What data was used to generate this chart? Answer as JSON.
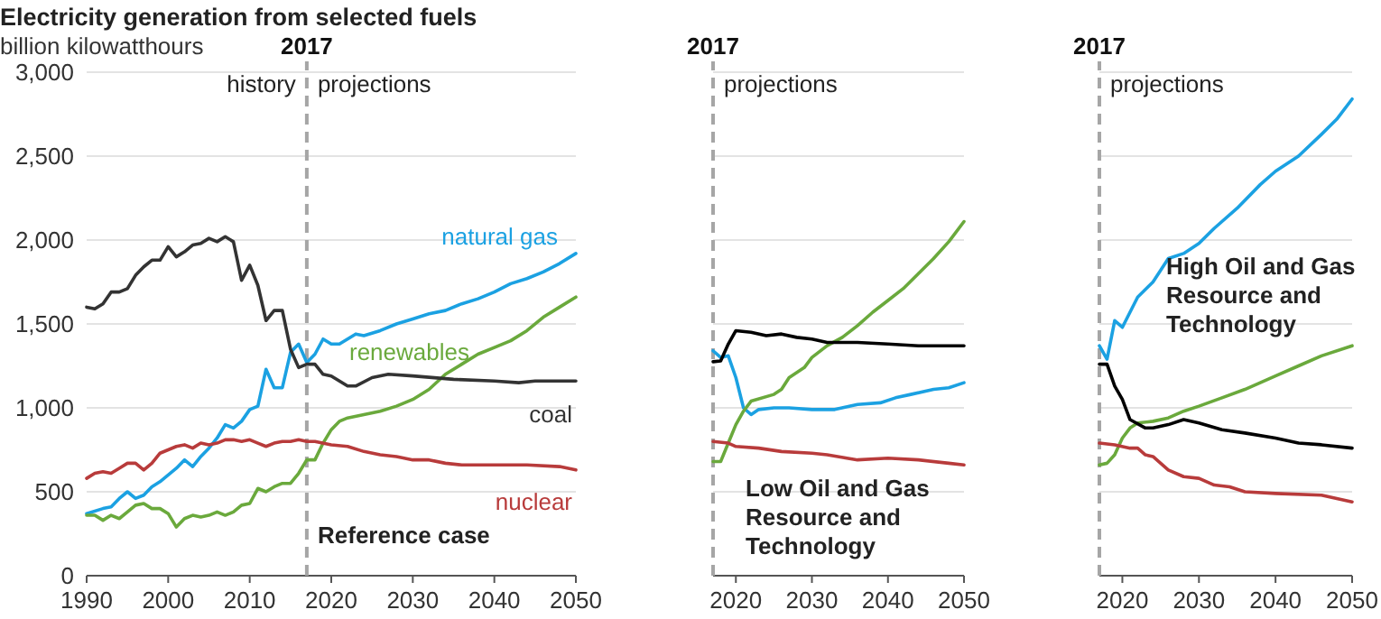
{
  "chart_data": [
    {
      "type": "line",
      "title": "Electricity generation from selected fuels",
      "ylabel": "billion kilowatthours",
      "xlim": [
        1990,
        2050
      ],
      "xticks": [
        1990,
        2000,
        2010,
        2020,
        2030,
        2040,
        2050
      ],
      "ylim": [
        0,
        3000
      ],
      "yticks": [
        {
          "value": 0,
          "label": "0"
        },
        {
          "value": 500,
          "label": "500"
        },
        {
          "value": 1000,
          "label": "1,000"
        },
        {
          "value": 1500,
          "label": "1,500"
        },
        {
          "value": 2000,
          "label": "2,000"
        },
        {
          "value": 2500,
          "label": "2,500"
        },
        {
          "value": 3000,
          "label": "3,000"
        }
      ],
      "grid": "y",
      "ref_lines": [
        {
          "axis": "x",
          "value": 2017,
          "label": "2017",
          "color": "#a6a6a6",
          "line_style": "dashed"
        }
      ],
      "annotations": [
        "history",
        "projections",
        "Reference case"
      ],
      "series": [
        {
          "name": "natural gas",
          "color": "#1ba1e2",
          "x": [
            1990,
            1992,
            1993,
            1994,
            1995,
            1996,
            1997,
            1998,
            1999,
            2000,
            2001,
            2002,
            2003,
            2004,
            2005,
            2006,
            2007,
            2008,
            2009,
            2010,
            2011,
            2012,
            2013,
            2014,
            2015,
            2016,
            2017,
            2018,
            2019,
            2020,
            2021,
            2023,
            2024,
            2026,
            2028,
            2030,
            2032,
            2034,
            2036,
            2038,
            2040,
            2042,
            2044,
            2046,
            2048,
            2050
          ],
          "values": [
            370,
            400,
            410,
            460,
            500,
            460,
            480,
            530,
            560,
            600,
            640,
            690,
            650,
            710,
            760,
            820,
            900,
            880,
            920,
            990,
            1010,
            1230,
            1120,
            1120,
            1330,
            1380,
            1270,
            1320,
            1410,
            1380,
            1380,
            1440,
            1430,
            1460,
            1500,
            1530,
            1560,
            1580,
            1620,
            1650,
            1690,
            1740,
            1770,
            1810,
            1860,
            1920
          ]
        },
        {
          "name": "renewables",
          "color": "#6aa93c",
          "x": [
            1990,
            1991,
            1992,
            1993,
            1994,
            1995,
            1996,
            1997,
            1998,
            1999,
            2000,
            2001,
            2002,
            2003,
            2004,
            2005,
            2006,
            2007,
            2008,
            2009,
            2010,
            2011,
            2012,
            2013,
            2014,
            2015,
            2016,
            2017,
            2018,
            2019,
            2020,
            2021,
            2022,
            2024,
            2026,
            2028,
            2030,
            2032,
            2034,
            2036,
            2038,
            2040,
            2042,
            2044,
            2046,
            2048,
            2050
          ],
          "values": [
            360,
            360,
            330,
            360,
            340,
            380,
            420,
            430,
            400,
            400,
            370,
            290,
            340,
            360,
            350,
            360,
            380,
            360,
            380,
            420,
            430,
            520,
            500,
            530,
            550,
            550,
            610,
            690,
            690,
            790,
            870,
            920,
            940,
            960,
            980,
            1010,
            1050,
            1110,
            1200,
            1260,
            1320,
            1360,
            1400,
            1460,
            1540,
            1600,
            1660
          ]
        },
        {
          "name": "coal",
          "color": "#333333",
          "x": [
            1990,
            1991,
            1992,
            1993,
            1994,
            1995,
            1996,
            1997,
            1998,
            1999,
            2000,
            2001,
            2002,
            2003,
            2004,
            2005,
            2006,
            2007,
            2008,
            2009,
            2010,
            2011,
            2012,
            2013,
            2014,
            2015,
            2016,
            2017,
            2018,
            2019,
            2020,
            2022,
            2023,
            2025,
            2027,
            2030,
            2035,
            2040,
            2043,
            2045,
            2050
          ],
          "values": [
            1600,
            1590,
            1620,
            1690,
            1690,
            1710,
            1790,
            1840,
            1880,
            1880,
            1960,
            1900,
            1930,
            1970,
            1980,
            2010,
            1990,
            2020,
            1990,
            1760,
            1850,
            1730,
            1520,
            1580,
            1580,
            1350,
            1240,
            1260,
            1260,
            1200,
            1190,
            1130,
            1130,
            1180,
            1200,
            1190,
            1170,
            1160,
            1150,
            1160,
            1160
          ]
        },
        {
          "name": "nuclear",
          "color": "#b83b3b",
          "x": [
            1990,
            1991,
            1992,
            1993,
            1994,
            1995,
            1996,
            1997,
            1998,
            1999,
            2000,
            2001,
            2002,
            2003,
            2004,
            2005,
            2006,
            2007,
            2008,
            2009,
            2010,
            2011,
            2012,
            2013,
            2014,
            2015,
            2016,
            2017,
            2018,
            2020,
            2022,
            2024,
            2026,
            2028,
            2030,
            2032,
            2034,
            2036,
            2040,
            2044,
            2048,
            2050
          ],
          "values": [
            580,
            610,
            620,
            610,
            640,
            670,
            670,
            630,
            670,
            730,
            750,
            770,
            780,
            760,
            790,
            780,
            790,
            810,
            810,
            800,
            810,
            790,
            770,
            790,
            800,
            800,
            810,
            800,
            800,
            780,
            770,
            740,
            720,
            710,
            690,
            690,
            670,
            660,
            660,
            660,
            650,
            630
          ]
        }
      ]
    },
    {
      "type": "line",
      "xlim": [
        2017,
        2050
      ],
      "xticks": [
        2020,
        2030,
        2040,
        2050
      ],
      "ylim": [
        0,
        3000
      ],
      "yticks": [
        0,
        500,
        1000,
        1500,
        2000,
        2500,
        3000
      ],
      "grid": "y",
      "tick_labels": "x",
      "ref_lines": [
        {
          "axis": "x",
          "value": 2017,
          "label": "2017",
          "color": "#a6a6a6",
          "line_style": "dashed"
        }
      ],
      "annotations": [
        "projections",
        "Low Oil and Gas Resource and Technology"
      ],
      "series": [
        {
          "color": "#1ba1e2",
          "x": [
            2017,
            2018,
            2019,
            2020,
            2021,
            2022,
            2023,
            2025,
            2027,
            2030,
            2033,
            2036,
            2039,
            2041,
            2043,
            2046,
            2048,
            2050
          ],
          "values": [
            1340,
            1300,
            1310,
            1180,
            1000,
            960,
            990,
            1000,
            1000,
            990,
            990,
            1020,
            1030,
            1060,
            1080,
            1110,
            1120,
            1150
          ]
        },
        {
          "color": "#6aa93c",
          "x": [
            2017,
            2018,
            2019,
            2020,
            2021,
            2022,
            2025,
            2026,
            2027,
            2029,
            2030,
            2032,
            2034,
            2036,
            2038,
            2040,
            2042,
            2044,
            2046,
            2048,
            2050
          ],
          "values": [
            680,
            680,
            790,
            900,
            980,
            1040,
            1080,
            1110,
            1180,
            1240,
            1300,
            1370,
            1420,
            1490,
            1570,
            1640,
            1710,
            1800,
            1890,
            1990,
            2110
          ]
        },
        {
          "color": "#000000",
          "x": [
            2017,
            2018,
            2019,
            2020,
            2022,
            2024,
            2026,
            2028,
            2030,
            2032,
            2036,
            2040,
            2044,
            2050
          ],
          "values": [
            1275,
            1280,
            1380,
            1460,
            1450,
            1430,
            1440,
            1420,
            1410,
            1390,
            1390,
            1380,
            1370,
            1370
          ]
        },
        {
          "color": "#b83b3b",
          "x": [
            2017,
            2019,
            2020,
            2023,
            2026,
            2030,
            2032,
            2036,
            2040,
            2044,
            2048,
            2050
          ],
          "values": [
            800,
            790,
            770,
            760,
            740,
            730,
            720,
            690,
            700,
            690,
            670,
            660
          ]
        }
      ]
    },
    {
      "type": "line",
      "xlim": [
        2017,
        2050
      ],
      "xticks": [
        2020,
        2030,
        2040,
        2050
      ],
      "ylim": [
        0,
        3000
      ],
      "yticks": [
        0,
        500,
        1000,
        1500,
        2000,
        2500,
        3000
      ],
      "grid": "y",
      "tick_labels": "x",
      "ref_lines": [
        {
          "axis": "x",
          "value": 2017,
          "label": "2017",
          "color": "#a6a6a6",
          "line_style": "dashed"
        }
      ],
      "annotations": [
        "projections",
        "High Oil and Gas Resource and Technology"
      ],
      "series": [
        {
          "color": "#1ba1e2",
          "x": [
            2017,
            2018,
            2019,
            2020,
            2021,
            2022,
            2024,
            2026,
            2028,
            2030,
            2032,
            2035,
            2038,
            2040,
            2043,
            2046,
            2048,
            2050
          ],
          "values": [
            1370,
            1290,
            1520,
            1480,
            1570,
            1660,
            1750,
            1890,
            1920,
            1980,
            2070,
            2190,
            2330,
            2410,
            2500,
            2630,
            2720,
            2840
          ]
        },
        {
          "color": "#6aa93c",
          "x": [
            2017,
            2018,
            2019,
            2020,
            2021,
            2022,
            2024,
            2026,
            2028,
            2030,
            2033,
            2036,
            2040,
            2043,
            2046,
            2050
          ],
          "values": [
            660,
            670,
            720,
            820,
            880,
            910,
            920,
            940,
            980,
            1010,
            1060,
            1110,
            1190,
            1250,
            1310,
            1370
          ]
        },
        {
          "color": "#000000",
          "x": [
            2017,
            2018,
            2019,
            2020,
            2021,
            2023,
            2024,
            2026,
            2028,
            2030,
            2033,
            2036,
            2040,
            2043,
            2046,
            2050
          ],
          "values": [
            1260,
            1260,
            1130,
            1050,
            930,
            880,
            880,
            900,
            930,
            910,
            870,
            850,
            820,
            790,
            780,
            760
          ]
        },
        {
          "color": "#b83b3b",
          "x": [
            2017,
            2019,
            2021,
            2022,
            2023,
            2024,
            2026,
            2028,
            2030,
            2032,
            2034,
            2036,
            2040,
            2046,
            2050
          ],
          "values": [
            790,
            780,
            760,
            760,
            720,
            710,
            630,
            590,
            580,
            540,
            530,
            500,
            490,
            480,
            440
          ]
        }
      ]
    }
  ]
}
